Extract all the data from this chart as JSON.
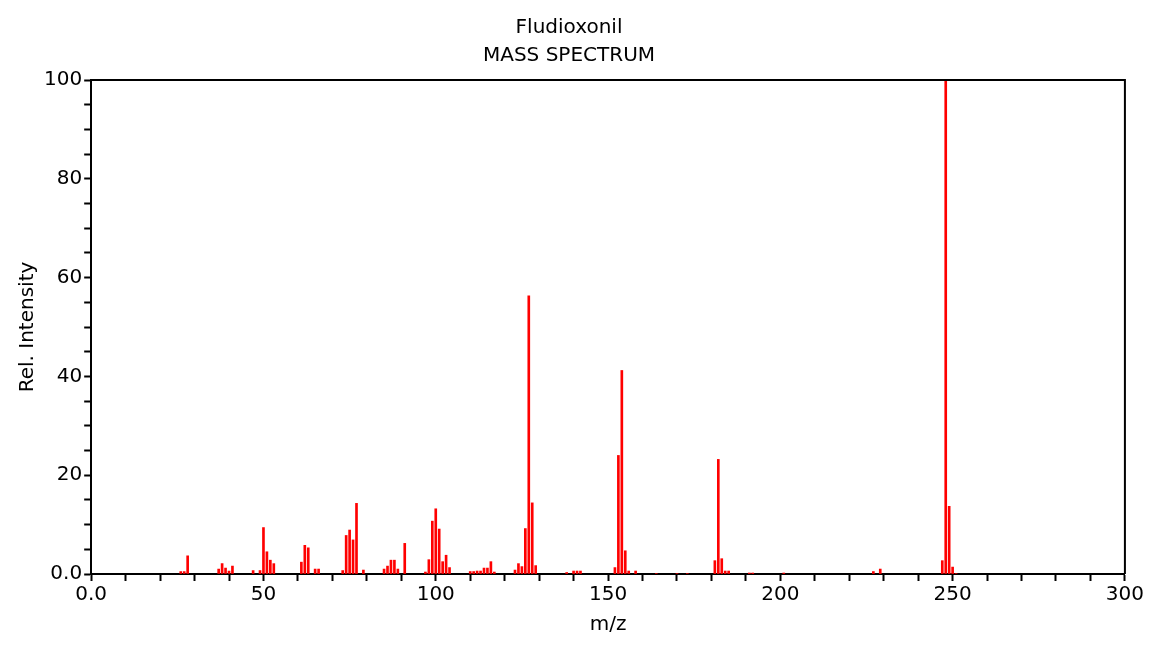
{
  "chart_data": {
    "type": "bar",
    "title": "Fludioxonil",
    "subtitle": "MASS SPECTRUM",
    "xlabel": "m/z",
    "ylabel": "Rel. Intensity",
    "x": [
      26,
      27,
      28,
      37,
      38,
      39,
      40,
      41,
      47,
      49,
      50,
      51,
      52,
      53,
      61,
      62,
      63,
      65,
      66,
      73,
      74,
      75,
      76,
      77,
      79,
      85,
      86,
      87,
      88,
      89,
      91,
      97,
      98,
      99,
      100,
      101,
      102,
      103,
      104,
      110,
      111,
      112,
      113,
      114,
      115,
      116,
      117,
      123,
      124,
      125,
      126,
      127,
      128,
      129,
      138,
      140,
      141,
      142,
      152,
      153,
      154,
      155,
      156,
      158,
      164,
      170,
      173,
      181,
      182,
      183,
      184,
      185,
      191,
      192,
      201,
      227,
      229,
      247,
      248,
      249,
      250,
      251
    ],
    "values": [
      0.5,
      0.5,
      3.7,
      1.0,
      2.1,
      1.2,
      0.6,
      1.6,
      0.7,
      0.7,
      9.4,
      4.5,
      2.8,
      2.1,
      2.4,
      5.8,
      5.3,
      1.0,
      1.0,
      0.7,
      7.8,
      8.9,
      6.9,
      14.3,
      0.8,
      1.0,
      1.6,
      2.8,
      2.8,
      1.0,
      6.2,
      0.4,
      2.9,
      10.7,
      13.2,
      9.1,
      2.5,
      3.8,
      1.3,
      0.5,
      0.5,
      0.6,
      0.6,
      1.2,
      1.2,
      2.5,
      0.4,
      0.8,
      2.1,
      1.5,
      9.2,
      56.3,
      14.4,
      1.7,
      0.3,
      0.6,
      0.6,
      0.6,
      1.3,
      24.0,
      41.2,
      4.7,
      0.6,
      0.6,
      0.1,
      0.1,
      0.1,
      2.7,
      23.2,
      3.1,
      0.6,
      0.6,
      0.2,
      0.2,
      0.2,
      0.5,
      1.0,
      2.7,
      100,
      13.7,
      1.4,
      0.1
    ],
    "color": "#ff0000",
    "xlim": [
      0,
      300
    ],
    "xticks": [
      {
        "value": 0,
        "label": "0.0"
      },
      {
        "value": 10,
        "label": null
      },
      {
        "value": 20,
        "label": null
      },
      {
        "value": 30,
        "label": null
      },
      {
        "value": 40,
        "label": null
      },
      50,
      {
        "value": 60,
        "label": null
      },
      {
        "value": 70,
        "label": null
      },
      {
        "value": 80,
        "label": null
      },
      {
        "value": 90,
        "label": null
      },
      100,
      {
        "value": 110,
        "label": null
      },
      {
        "value": 120,
        "label": null
      },
      {
        "value": 130,
        "label": null
      },
      {
        "value": 140,
        "label": null
      },
      150,
      {
        "value": 160,
        "label": null
      },
      {
        "value": 170,
        "label": null
      },
      {
        "value": 180,
        "label": null
      },
      {
        "value": 190,
        "label": null
      },
      200,
      {
        "value": 210,
        "label": null
      },
      {
        "value": 220,
        "label": null
      },
      {
        "value": 230,
        "label": null
      },
      {
        "value": 240,
        "label": null
      },
      250,
      {
        "value": 260,
        "label": null
      },
      {
        "value": 270,
        "label": null
      },
      {
        "value": 280,
        "label": null
      },
      {
        "value": 290,
        "label": null
      },
      300
    ],
    "ylim": [
      0,
      100
    ],
    "yticks": [
      {
        "value": 0,
        "label": "0.0"
      },
      {
        "value": 5,
        "label": null
      },
      {
        "value": 10,
        "label": null
      },
      {
        "value": 15,
        "label": null
      },
      20,
      {
        "value": 25,
        "label": null
      },
      {
        "value": 30,
        "label": null
      },
      {
        "value": 35,
        "label": null
      },
      40,
      {
        "value": 45,
        "label": null
      },
      {
        "value": 50,
        "label": null
      },
      {
        "value": 55,
        "label": null
      },
      60,
      {
        "value": 65,
        "label": null
      },
      {
        "value": 70,
        "label": null
      },
      {
        "value": 75,
        "label": null
      },
      80,
      {
        "value": 85,
        "label": null
      },
      {
        "value": 90,
        "label": null
      },
      {
        "value": 95,
        "label": null
      },
      100
    ],
    "grid": false,
    "legend": false
  }
}
